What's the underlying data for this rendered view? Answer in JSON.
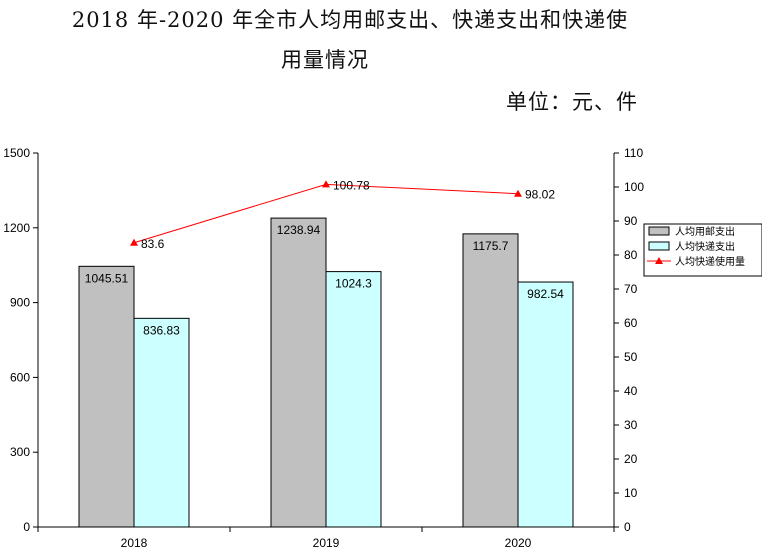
{
  "header": {
    "title_line1": "2018 年-2020 年全市人均用邮支出、快递支出和快递使",
    "title_line2": "用量情况",
    "unit": "单位：元、件"
  },
  "chart_data": {
    "type": "bar",
    "categories": [
      "2018",
      "2019",
      "2020"
    ],
    "series": [
      {
        "name": "人均用邮支出",
        "kind": "bar",
        "axis": "left",
        "color": "#c0c0c0",
        "values": [
          1045.51,
          1238.94,
          1175.7
        ],
        "labels": [
          "1045.51",
          "1238.94",
          "1175.7"
        ]
      },
      {
        "name": "人均快递支出",
        "kind": "bar",
        "axis": "left",
        "color": "#ccffff",
        "values": [
          836.83,
          1024.3,
          982.54
        ],
        "labels": [
          "836.83",
          "1024.3",
          "982.54"
        ]
      },
      {
        "name": "人均快递使用量",
        "kind": "line",
        "axis": "right",
        "color": "#ff0000",
        "marker": "triangle",
        "values": [
          83.6,
          100.78,
          98.02
        ],
        "labels": [
          "83.6",
          "100.78",
          "98.02"
        ]
      }
    ],
    "ylim_left": [
      0,
      1500
    ],
    "yticks_left": [
      "0",
      "300",
      "600",
      "900",
      "1200",
      "1500"
    ],
    "ylim_right": [
      0,
      110
    ],
    "yticks_right": [
      "0",
      "10",
      "20",
      "30",
      "40",
      "50",
      "60",
      "70",
      "80",
      "90",
      "100",
      "110"
    ],
    "grid": false,
    "legend_position": "right"
  }
}
